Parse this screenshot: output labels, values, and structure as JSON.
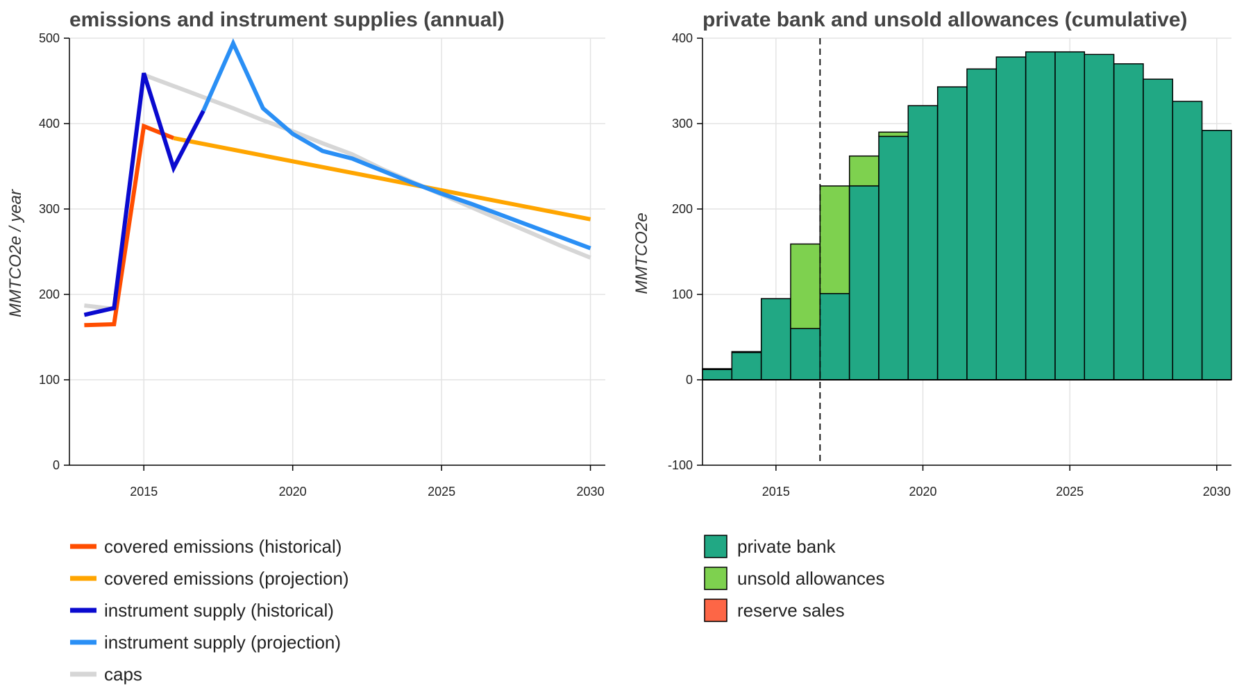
{
  "chart_data": [
    {
      "type": "line",
      "title": "emissions and instrument supplies (annual)",
      "xlabel": "",
      "ylabel": "MMTCO2e / year",
      "xlim": [
        2012.5,
        2030.5
      ],
      "ylim": [
        0,
        500
      ],
      "x_ticks": [
        2015,
        2020,
        2025,
        2030
      ],
      "y_ticks": [
        0,
        100,
        200,
        300,
        400,
        500
      ],
      "grid": true,
      "legend_position": "bottom",
      "series": [
        {
          "name": "caps",
          "color": "#d6d6d6",
          "x": [
            2013,
            2014,
            2015,
            2016,
            2017,
            2018,
            2019,
            2020,
            2021,
            2022,
            2023,
            2024,
            2025,
            2026,
            2027,
            2028,
            2029,
            2030
          ],
          "y": [
            187,
            183,
            457,
            444,
            431,
            418,
            404,
            391,
            377,
            364,
            347,
            332,
            317,
            302,
            287,
            272,
            257,
            243
          ]
        },
        {
          "name": "covered emissions (historical)",
          "color": "#ff4d00",
          "x": [
            2013,
            2014,
            2015,
            2016
          ],
          "y": [
            164,
            165,
            397,
            383
          ]
        },
        {
          "name": "covered emissions (projection)",
          "color": "#ffa500",
          "x": [
            2016,
            2030
          ],
          "y": [
            383,
            288
          ]
        },
        {
          "name": "instrument supply (historical)",
          "color": "#0a0acf",
          "x": [
            2013,
            2014,
            2015,
            2016,
            2017
          ],
          "y": [
            176,
            184,
            459,
            348,
            415
          ]
        },
        {
          "name": "instrument supply (projection)",
          "color": "#2a8ff5",
          "x": [
            2017,
            2018,
            2019,
            2020,
            2021,
            2022,
            2023,
            2024,
            2025,
            2026,
            2027,
            2028,
            2029,
            2030
          ],
          "y": [
            415,
            494,
            418,
            388,
            368,
            359,
            345,
            331,
            318,
            306,
            293,
            280,
            267,
            254
          ]
        }
      ],
      "legend_order": [
        "covered emissions (historical)",
        "covered emissions (projection)",
        "instrument supply (historical)",
        "instrument supply (projection)",
        "caps"
      ]
    },
    {
      "type": "bar",
      "stacked": true,
      "title": "private bank and unsold allowances (cumulative)",
      "xlabel": "",
      "ylabel": "MMTCO2e",
      "xlim": [
        2012.5,
        2030.5
      ],
      "ylim": [
        -100,
        400
      ],
      "x_ticks": [
        2015,
        2020,
        2025,
        2030
      ],
      "y_ticks": [
        -100,
        0,
        100,
        200,
        300,
        400
      ],
      "grid": true,
      "legend_position": "bottom",
      "reference_line_x": 2016.5,
      "categories": [
        2013,
        2014,
        2015,
        2016,
        2017,
        2018,
        2019,
        2020,
        2021,
        2022,
        2023,
        2024,
        2025,
        2026,
        2027,
        2028,
        2029,
        2030
      ],
      "series": [
        {
          "name": "private bank",
          "color": "#21a884",
          "values": [
            12,
            32,
            95,
            60,
            101,
            227,
            285,
            321,
            343,
            364,
            378,
            384,
            384,
            381,
            370,
            352,
            326,
            292
          ]
        },
        {
          "name": "unsold allowances",
          "color": "#7ed14f",
          "values": [
            1,
            1,
            0,
            99,
            126,
            35,
            5,
            0,
            0,
            0,
            0,
            0,
            0,
            0,
            0,
            0,
            0,
            0
          ]
        },
        {
          "name": "reserve sales",
          "color": "#fd6646",
          "values": [
            0,
            0,
            0,
            0,
            0,
            0,
            0,
            0,
            0,
            0,
            0,
            0,
            0,
            0,
            0,
            0,
            0,
            0
          ]
        }
      ]
    }
  ]
}
